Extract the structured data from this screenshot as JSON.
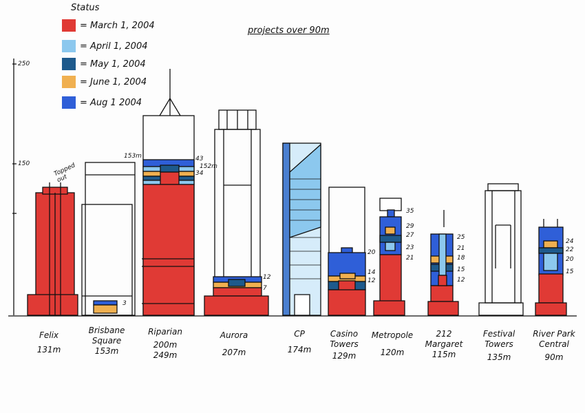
{
  "title": "projects over 90m",
  "legend": {
    "heading": "Status",
    "items": [
      {
        "label": "= March 1, 2004",
        "color": "#e03a35"
      },
      {
        "label": "= April 1, 2004",
        "color": "#8cc8ee"
      },
      {
        "label": "= May 1, 2004",
        "color": "#1e5a8c"
      },
      {
        "label": "= June 1, 2004",
        "color": "#f0b050"
      },
      {
        "label": "= Aug 1 2004",
        "color": "#2f5fd8"
      }
    ]
  },
  "axis": {
    "ticks": [
      "250",
      "150"
    ]
  },
  "buildings": [
    {
      "name": "Felix",
      "height": "131m",
      "note": "Topped out"
    },
    {
      "name": "Brisbane Square",
      "height": "153m",
      "floor": "3"
    },
    {
      "name": "Riparian",
      "height": "200m",
      "height2": "249m",
      "note": "153m",
      "floors": [
        "43",
        "152m",
        "34"
      ]
    },
    {
      "name": "Aurora",
      "height": "207m",
      "floors": [
        "12",
        "7"
      ]
    },
    {
      "name": "CP",
      "height": "174m"
    },
    {
      "name": "Casino Towers",
      "height": "129m",
      "floors": [
        "20",
        "14",
        "12"
      ]
    },
    {
      "name": "Metropole",
      "height": "120m",
      "floors": [
        "35",
        "29",
        "27",
        "23",
        "21"
      ]
    },
    {
      "name": "212 Margaret",
      "height": "115m",
      "floors": [
        "25",
        "21",
        "18",
        "15",
        "12"
      ]
    },
    {
      "name": "Festival Towers",
      "height": "135m"
    },
    {
      "name": "River Park Central",
      "height": "90m",
      "floors": [
        "24",
        "22",
        "20",
        "15"
      ]
    }
  ]
}
